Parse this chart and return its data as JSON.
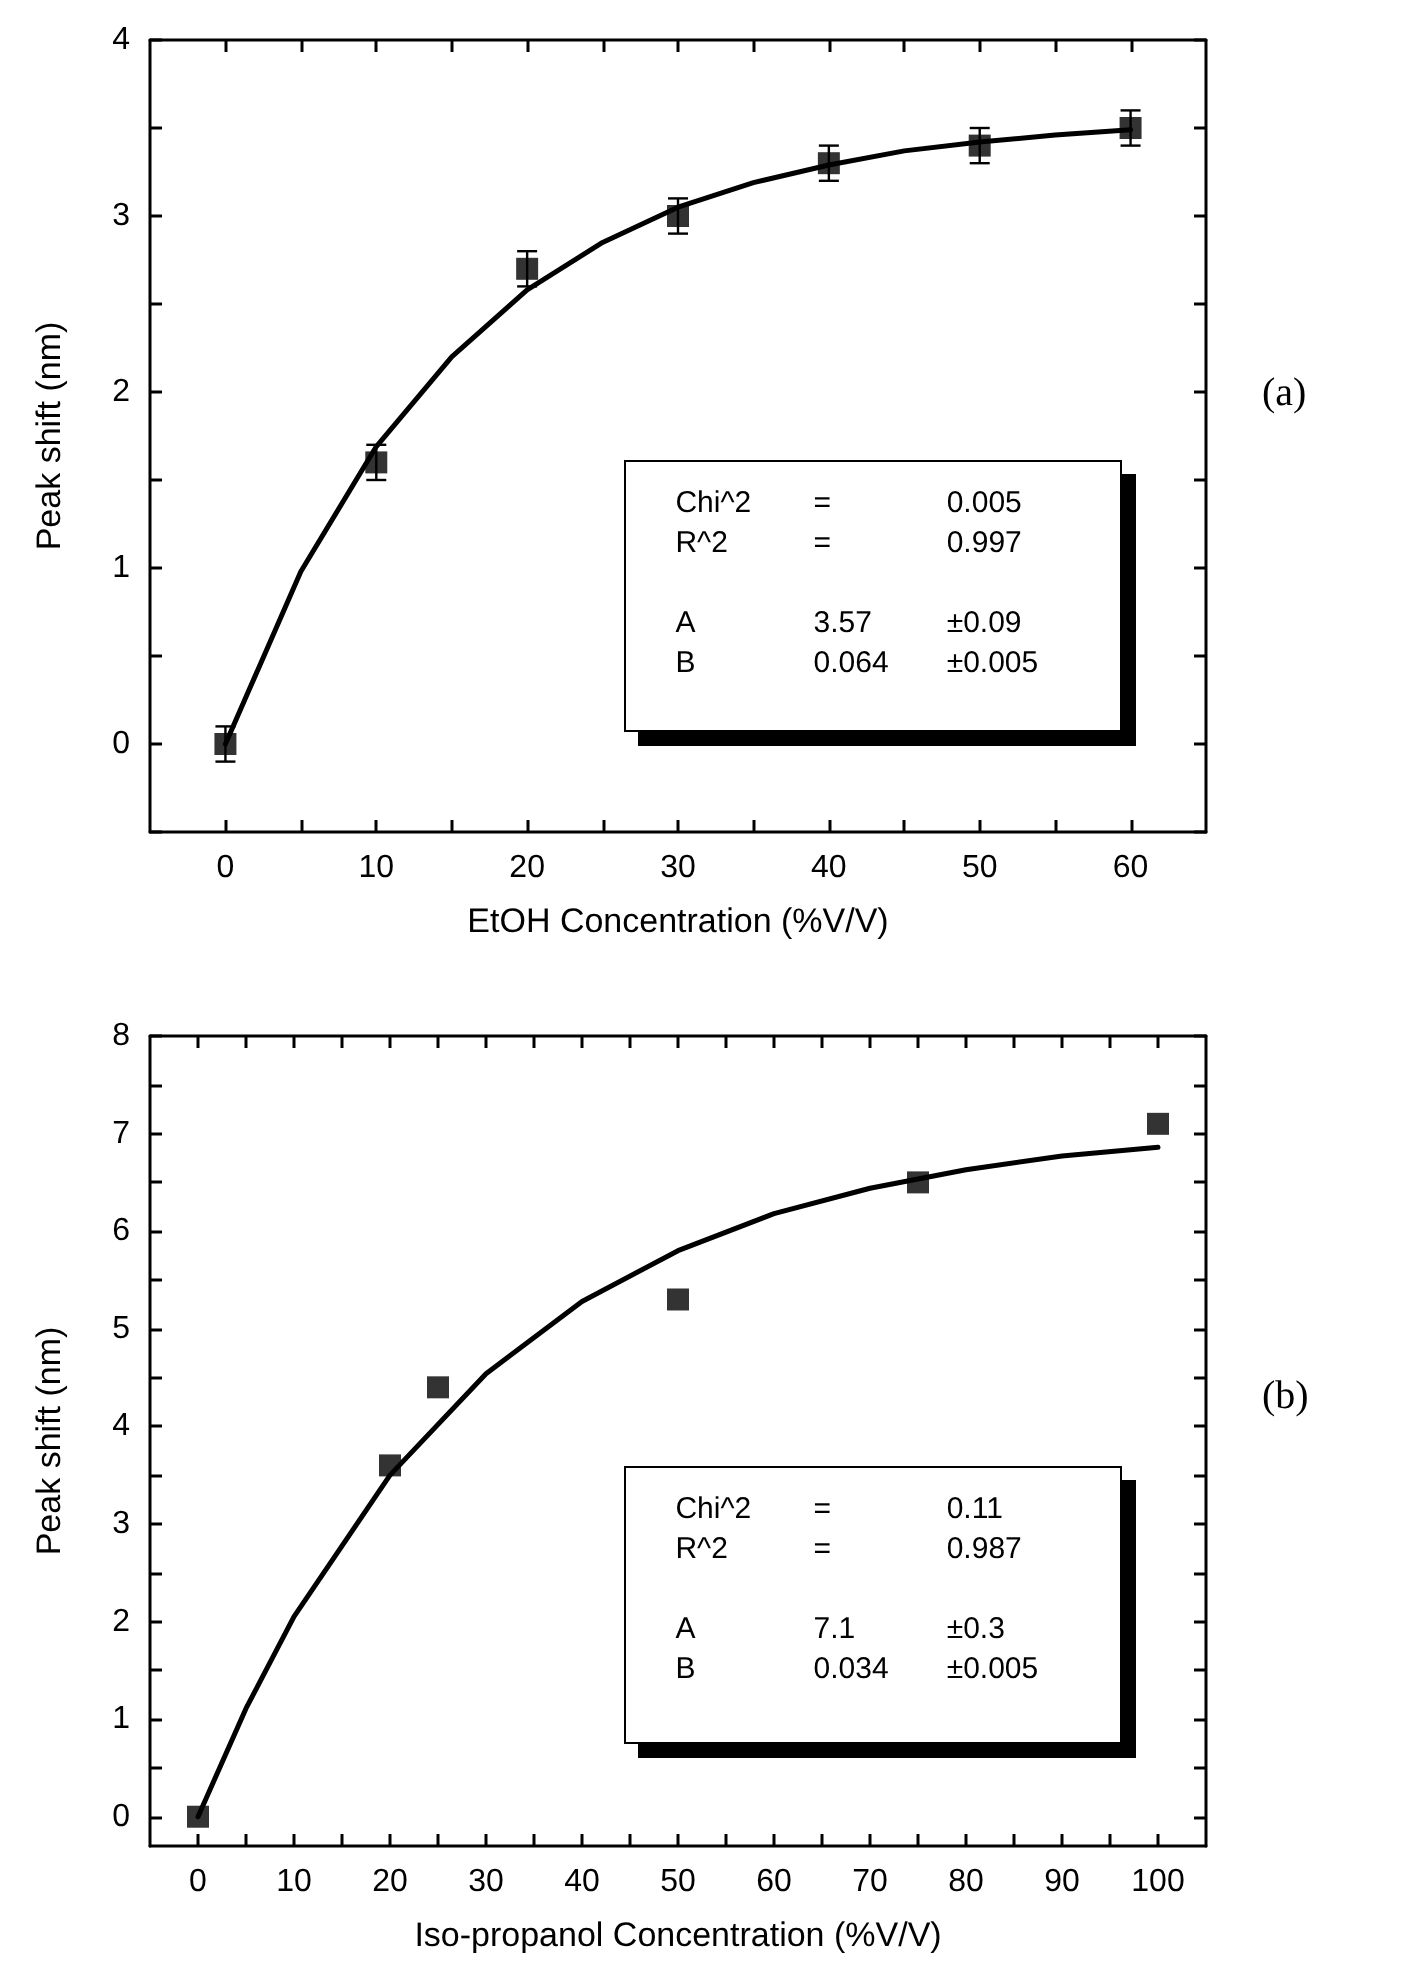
{
  "chart_data": [
    {
      "type": "scatter",
      "xlabel": "EtOH Concentration (%V/V)",
      "ylabel": "Peak shift (nm)",
      "xlim": [
        -5,
        65
      ],
      "ylim": [
        -0.5,
        4
      ],
      "xticks": [
        0,
        {
          "value": 5,
          "label": null
        },
        10,
        {
          "value": 15,
          "label": null
        },
        20,
        {
          "value": 25,
          "label": null
        },
        30,
        {
          "value": 35,
          "label": null
        },
        40,
        {
          "value": 45,
          "label": null
        },
        50,
        {
          "value": 55,
          "label": null
        },
        60
      ],
      "yticks": [
        {
          "value": -0.5,
          "label": null
        },
        0,
        {
          "value": 0.5,
          "label": null
        },
        1,
        {
          "value": 1.5,
          "label": null
        },
        2,
        {
          "value": 2.5,
          "label": null
        },
        3,
        {
          "value": 3.5,
          "label": null
        },
        4
      ],
      "series": [
        {
          "type": "scatter",
          "marker": "square",
          "color": "#000000",
          "x": [
            0,
            10,
            20,
            30,
            40,
            50,
            60
          ],
          "values": [
            0,
            1.6,
            2.7,
            3.0,
            3.3,
            3.4,
            3.5
          ],
          "errors": [
            0.1,
            0.1,
            0.1,
            0.1,
            0.1,
            0.1,
            0.1
          ]
        },
        {
          "type": "line",
          "marker": "none",
          "color": "#000000",
          "x": [
            0,
            5,
            10,
            15,
            20,
            25,
            30,
            35,
            40,
            45,
            50,
            55,
            60
          ],
          "values": [
            0,
            0.98,
            1.69,
            2.2,
            2.58,
            2.85,
            3.05,
            3.19,
            3.29,
            3.37,
            3.42,
            3.46,
            3.49
          ]
        }
      ],
      "annotations": [
        "(a)",
        "Chi^2 = 0.005",
        "R^2 = 0.997",
        "A 3.57 ±0.09",
        "B 0.064 ±0.005"
      ]
    },
    {
      "type": "scatter",
      "xlabel": "Iso-propanol Concentration (%V/V)",
      "ylabel": "Peak shift (nm)",
      "xlim": [
        -5,
        105
      ],
      "ylim": [
        -0.3,
        8
      ],
      "xticks": [
        0,
        {
          "value": 5,
          "label": null
        },
        10,
        {
          "value": 15,
          "label": null
        },
        20,
        {
          "value": 25,
          "label": null
        },
        30,
        {
          "value": 35,
          "label": null
        },
        40,
        {
          "value": 45,
          "label": null
        },
        50,
        {
          "value": 55,
          "label": null
        },
        60,
        {
          "value": 65,
          "label": null
        },
        70,
        {
          "value": 75,
          "label": null
        },
        80,
        {
          "value": 85,
          "label": null
        },
        90,
        {
          "value": 95,
          "label": null
        },
        100
      ],
      "yticks": [
        0,
        {
          "value": 0.5,
          "label": null
        },
        1,
        {
          "value": 1.5,
          "label": null
        },
        2,
        {
          "value": 2.5,
          "label": null
        },
        3,
        {
          "value": 3.5,
          "label": null
        },
        4,
        {
          "value": 4.5,
          "label": null
        },
        5,
        {
          "value": 5.5,
          "label": null
        },
        6,
        {
          "value": 6.5,
          "label": null
        },
        7,
        {
          "value": 7.5,
          "label": null
        },
        8
      ],
      "series": [
        {
          "type": "scatter",
          "marker": "square",
          "color": "#000000",
          "x": [
            0,
            20,
            25,
            50,
            75,
            100
          ],
          "values": [
            0,
            3.6,
            4.4,
            5.3,
            6.5,
            7.1
          ]
        },
        {
          "type": "line",
          "marker": "none",
          "color": "#000000",
          "x": [
            0,
            5,
            10,
            20,
            30,
            40,
            50,
            60,
            70,
            80,
            90,
            100
          ],
          "values": [
            0,
            1.11,
            2.05,
            3.5,
            4.54,
            5.28,
            5.8,
            6.18,
            6.44,
            6.63,
            6.77,
            6.86
          ]
        }
      ],
      "annotations": [
        "(b)",
        "Chi^2 = 0.11",
        "R^2 = 0.987",
        "A 7.1 ±0.3",
        "B 0.034 ±0.005"
      ]
    }
  ]
}
